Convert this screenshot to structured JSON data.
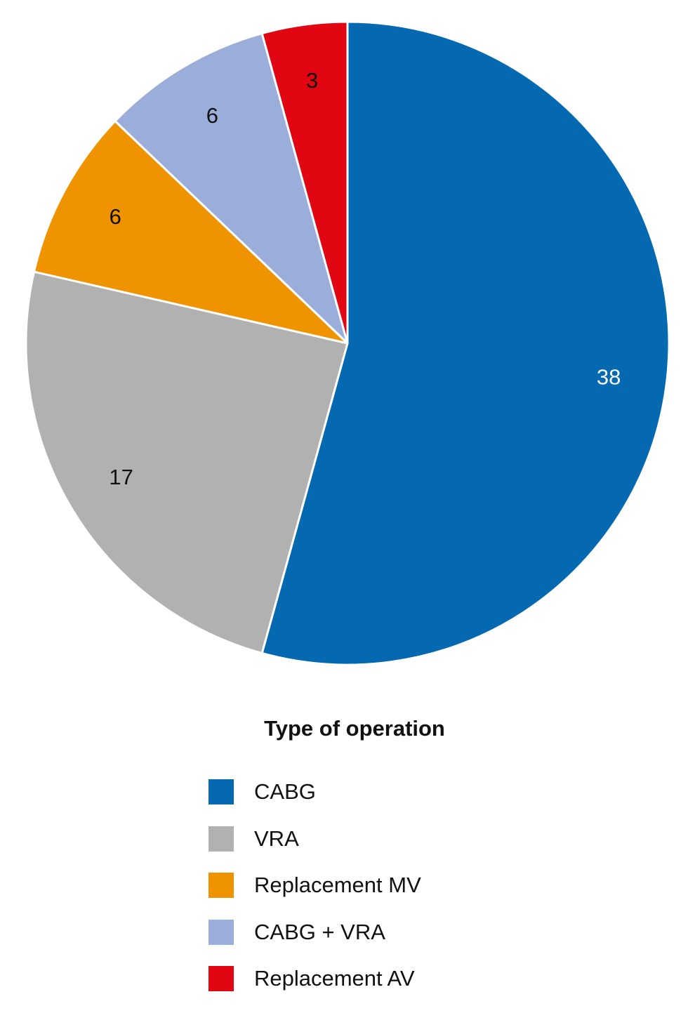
{
  "chart_data": {
    "type": "pie",
    "legend_title": "Type of operation",
    "slices": [
      {
        "name": "CABG",
        "value": 38,
        "color": "#0469B1",
        "label_color": "#ffffff"
      },
      {
        "name": "VRA",
        "value": 17,
        "color": "#B1B1B1",
        "label_color": "#111111"
      },
      {
        "name": "Replacement MV",
        "value": 6,
        "color": "#F09300",
        "label_color": "#111111"
      },
      {
        "name": "CABG + VRA",
        "value": 6,
        "color": "#9BAEDA",
        "label_color": "#111111"
      },
      {
        "name": "Replacement AV",
        "value": 3,
        "color": "#E20613",
        "label_color": "#111111"
      }
    ],
    "legend_placement": "bottom"
  }
}
